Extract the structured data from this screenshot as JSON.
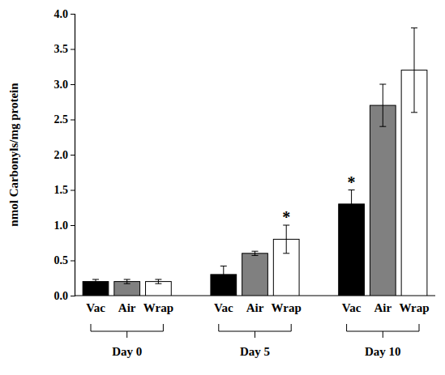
{
  "chart_data": {
    "type": "bar",
    "y_label": "nmol Carbonyls/mg protein",
    "categories": [
      "Day 0",
      "Day 5",
      "Day 10"
    ],
    "series": [
      {
        "name": "Vac",
        "color": "#000000",
        "values": [
          0.2,
          0.3,
          1.3
        ],
        "errors": [
          0.03,
          0.12,
          0.2
        ]
      },
      {
        "name": "Air",
        "color": "#808080",
        "values": [
          0.2,
          0.6,
          2.7
        ],
        "errors": [
          0.03,
          0.03,
          0.3
        ]
      },
      {
        "name": "Wrap",
        "color": "#ffffff",
        "values": [
          0.2,
          0.8,
          3.2
        ],
        "errors": [
          0.03,
          0.2,
          0.6
        ]
      }
    ],
    "annotations": [
      {
        "text": "*",
        "series": "Wrap",
        "category": "Day 5"
      },
      {
        "text": "*",
        "series": "Vac",
        "category": "Day 10"
      }
    ],
    "ylim": [
      0,
      4
    ],
    "yticks": [
      {
        "value": 0,
        "label": "0.0"
      },
      0.5,
      {
        "value": 1,
        "label": "1.0"
      },
      1.5,
      {
        "value": 2,
        "label": "2.0"
      },
      2.5,
      {
        "value": 3,
        "label": "3.0"
      },
      3.5,
      {
        "value": 4,
        "label": "4.0"
      }
    ],
    "grid": false
  }
}
